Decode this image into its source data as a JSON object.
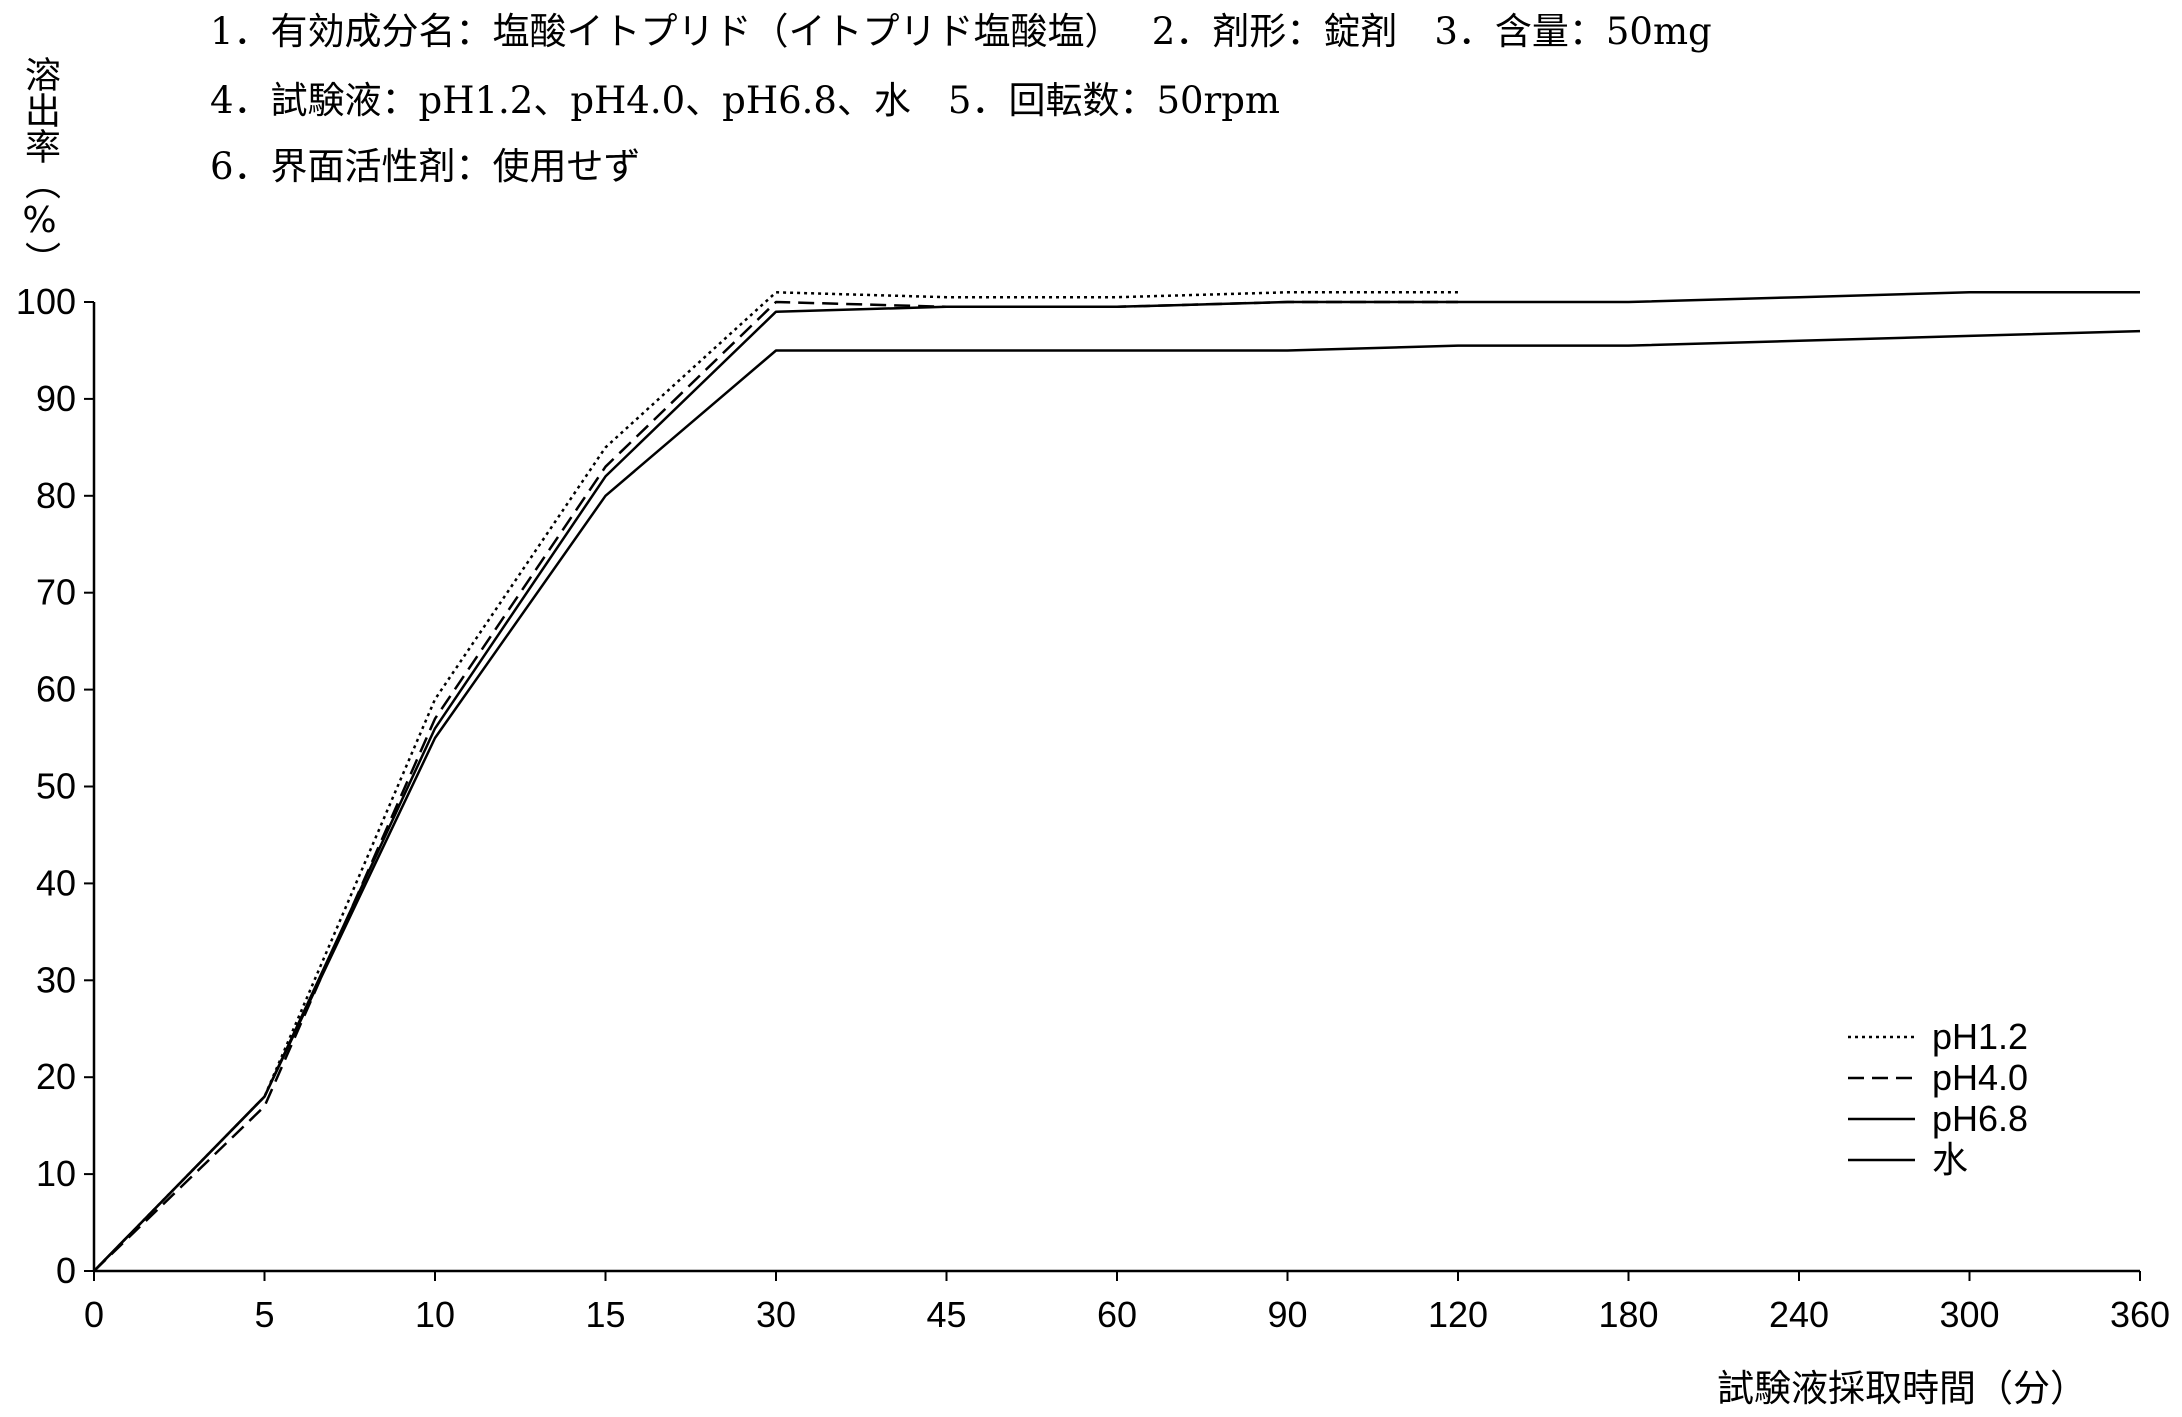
{
  "header": {
    "line1": "1．有効成分名：塩酸イトプリド（イトプリド塩酸塩）　 2．剤形：錠剤　3．含量：50mg",
    "line2": "4．試験液：pH1.2、pH4.0、pH6.8、水　5．回転数：50rpm",
    "line3": "6．界面活性剤：使用せず"
  },
  "colors": {
    "line": "#000000",
    "axis": "#000000",
    "background": "#ffffff"
  },
  "chart_data": {
    "type": "line",
    "title": "",
    "xlabel": "試験液採取時間（分）",
    "ylabel": "溶出率（%）",
    "x_scale": "categorical (equally spaced time points)",
    "categories": [
      "0",
      "5",
      "10",
      "15",
      "30",
      "45",
      "60",
      "90",
      "120",
      "180",
      "240",
      "300",
      "360"
    ],
    "yticks": [
      "0",
      "10",
      "20",
      "30",
      "40",
      "50",
      "60",
      "70",
      "80",
      "90",
      "100"
    ],
    "ylim": [
      0,
      100
    ],
    "grid": false,
    "legend_position": "bottom-right",
    "series": [
      {
        "name": "pH1.2",
        "style": "dotted",
        "x": [
          "0",
          "5",
          "10",
          "15",
          "30",
          "45",
          "60",
          "90",
          "120"
        ],
        "values": [
          0,
          18,
          59,
          85,
          101,
          100.5,
          100.5,
          101,
          101
        ]
      },
      {
        "name": "pH4.0",
        "style": "dashed",
        "x": [
          "0",
          "5",
          "10",
          "15",
          "30",
          "45",
          "60",
          "90",
          "120"
        ],
        "values": [
          0,
          17,
          57,
          83,
          100,
          99.5,
          99.5,
          100,
          100
        ]
      },
      {
        "name": "pH6.8",
        "style": "solid",
        "x": [
          "0",
          "5",
          "10",
          "15",
          "30",
          "45",
          "60",
          "90",
          "120",
          "180",
          "240",
          "300",
          "360"
        ],
        "values": [
          0,
          18,
          56,
          82,
          99,
          99.5,
          99.5,
          100,
          100,
          100,
          100.5,
          101,
          101
        ]
      },
      {
        "name": "水",
        "style": "solid",
        "x": [
          "0",
          "5",
          "10",
          "15",
          "30",
          "45",
          "60",
          "90",
          "120",
          "180",
          "240",
          "300",
          "360"
        ],
        "values": [
          0,
          18,
          55,
          80,
          95,
          95,
          95,
          95,
          95.5,
          95.5,
          96,
          96.5,
          97
        ]
      }
    ]
  }
}
